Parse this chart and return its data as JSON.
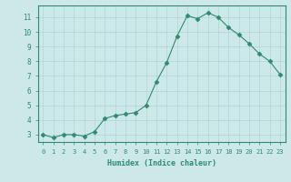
{
  "x": [
    0,
    1,
    2,
    3,
    4,
    5,
    6,
    7,
    8,
    9,
    10,
    11,
    12,
    13,
    14,
    15,
    16,
    17,
    18,
    19,
    20,
    21,
    22,
    23
  ],
  "y": [
    3.0,
    2.8,
    3.0,
    3.0,
    2.9,
    3.2,
    4.1,
    4.3,
    4.4,
    4.5,
    5.0,
    6.6,
    7.9,
    9.7,
    11.1,
    10.9,
    11.3,
    11.0,
    10.3,
    9.8,
    9.2,
    8.5,
    8.0,
    7.1
  ],
  "line_color": "#2e8b70",
  "marker": "D",
  "marker_size": 2.5,
  "bg_color": "#cce8e8",
  "grid_color": "#b0d4d4",
  "axis_label_color": "#2e8b70",
  "tick_label_color": "#2e8b70",
  "xlabel": "Humidex (Indice chaleur)",
  "ylabel": "",
  "xlim": [
    -0.5,
    23.5
  ],
  "ylim": [
    2.5,
    11.8
  ],
  "yticks": [
    3,
    4,
    5,
    6,
    7,
    8,
    9,
    10,
    11
  ],
  "xticks": [
    0,
    1,
    2,
    3,
    4,
    5,
    6,
    7,
    8,
    9,
    10,
    11,
    12,
    13,
    14,
    15,
    16,
    17,
    18,
    19,
    20,
    21,
    22,
    23
  ]
}
